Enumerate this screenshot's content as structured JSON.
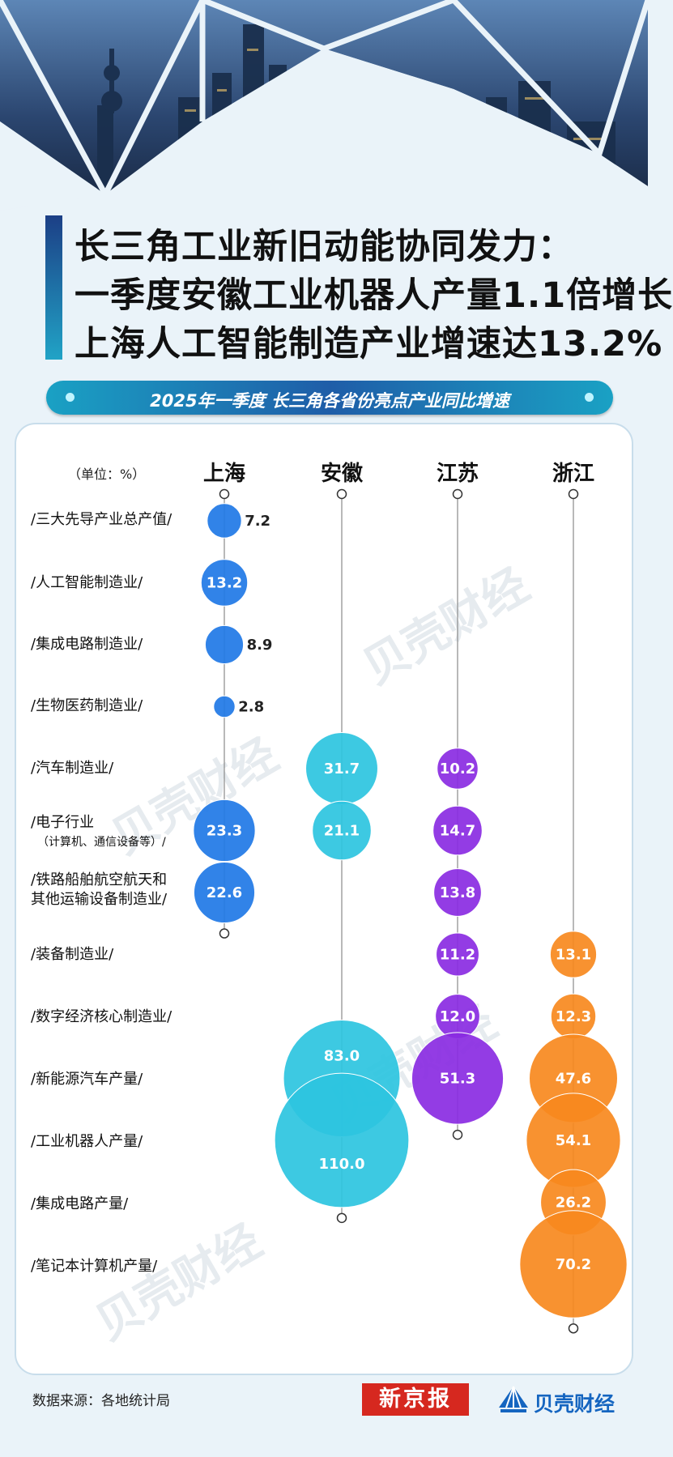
{
  "title": {
    "lines": [
      "长三角工业新旧动能协同发力：",
      "一季度安徽工业机器人产量1.1倍增长",
      "上海人工智能制造产业增速达13.2%"
    ]
  },
  "subtitle": "2025年一季度 长三角各省份亮点产业同比增速",
  "footer": {
    "source": "数据来源：各地统计局",
    "logo_xjb": "新京报",
    "logo_bk": "贝壳财经"
  },
  "watermark": "贝壳财经",
  "colors": {
    "上海": "#1f78e6",
    "安徽": "#2cc4e0",
    "江苏": "#8a2be2",
    "浙江": "#f7891e"
  },
  "chart_data": {
    "type": "bubble",
    "unit_label": "（单位：%）",
    "columns": [
      "上海",
      "安徽",
      "江苏",
      "浙江"
    ],
    "rows": [
      {
        "label": "/三大先导产业总产值/",
        "values": {
          "上海": 7.2
        }
      },
      {
        "label": "/人工智能制造业/",
        "values": {
          "上海": 13.2
        }
      },
      {
        "label": "/集成电路制造业/",
        "values": {
          "上海": 8.9
        }
      },
      {
        "label": "/生物医药制造业/",
        "values": {
          "上海": 2.8
        }
      },
      {
        "label": "/汽车制造业/",
        "values": {
          "安徽": 31.7,
          "江苏": 10.2
        }
      },
      {
        "label": "/电子行业",
        "sublabel": "（计算机、通信设备等）/",
        "values": {
          "上海": 23.3,
          "安徽": 21.1,
          "江苏": 14.7
        }
      },
      {
        "label": "/铁路船舶航空航天和",
        "label2": "其他运输设备制造业/",
        "values": {
          "上海": 22.6,
          "江苏": 13.8
        }
      },
      {
        "label": "/装备制造业/",
        "values": {
          "江苏": 11.2,
          "浙江": 13.1
        }
      },
      {
        "label": "/数字经济核心制造业/",
        "values": {
          "江苏": 12.0,
          "浙江": 12.3
        }
      },
      {
        "label": "/新能源汽车产量/",
        "values": {
          "安徽": 83.0,
          "江苏": 51.3,
          "浙江": 47.6
        }
      },
      {
        "label": "/工业机器人产量/",
        "values": {
          "安徽": 110.0,
          "浙江": 54.1
        }
      },
      {
        "label": "/集成电路产量/",
        "values": {
          "浙江": 26.2
        }
      },
      {
        "label": "/笔记本计算机产量/",
        "values": {
          "浙江": 70.2
        }
      }
    ]
  }
}
